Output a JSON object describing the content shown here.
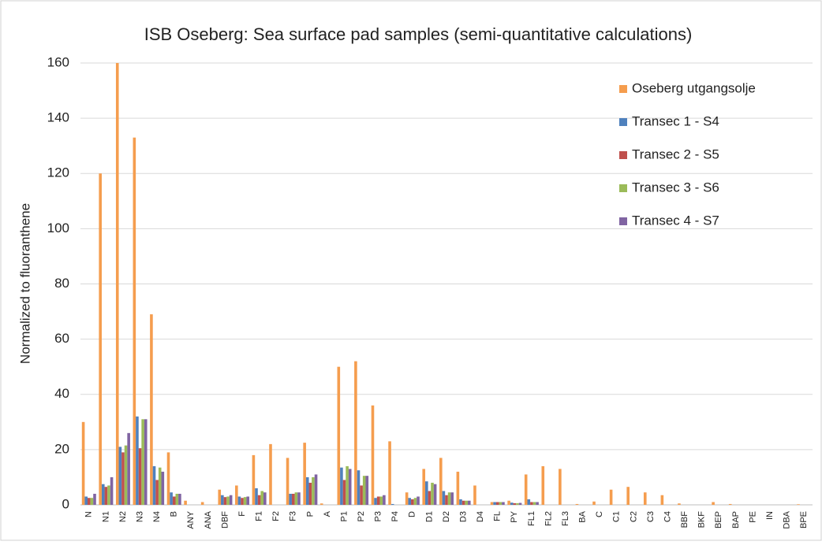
{
  "chart_data": {
    "type": "bar",
    "title": "ISB Oseberg: Sea surface pad samples (semi-quantitative calculations)",
    "y_label": "Normalized to fluoranthene",
    "categories": [
      "N",
      "N1",
      "N2",
      "N3",
      "N4",
      "B",
      "ANY",
      "ANA",
      "DBF",
      "F",
      "F1",
      "F2",
      "F3",
      "P",
      "A",
      "P1",
      "P2",
      "P3",
      "P4",
      "D",
      "D1",
      "D2",
      "D3",
      "D4",
      "FL",
      "PY",
      "FL1",
      "FL2",
      "FL3",
      "BA",
      "C",
      "C1",
      "C2",
      "C3",
      "C4",
      "BBF",
      "BKF",
      "BEP",
      "BAP",
      "PE",
      "IN",
      "DBA",
      "BPE"
    ],
    "series": [
      {
        "name": "Oseberg utgangsolje",
        "color": "#f59d4e",
        "values": [
          30,
          120,
          160,
          133,
          69,
          19,
          1.5,
          1,
          5.5,
          7,
          18,
          22,
          17,
          22.5,
          0.5,
          50,
          52,
          36,
          23,
          4.5,
          13,
          17,
          12,
          7,
          1,
          1.5,
          11,
          14,
          13,
          0.3,
          1.2,
          5.5,
          6.5,
          4.5,
          3.5,
          0.5,
          0,
          1,
          0.3,
          0,
          0,
          0,
          0.2
        ]
      },
      {
        "name": "Transec 1 - S4",
        "color": "#4f81bd",
        "values": [
          3,
          7.5,
          21,
          32,
          14,
          4.5,
          0,
          0,
          3.5,
          3,
          6,
          0,
          4,
          10,
          0,
          13.5,
          12.5,
          2.5,
          0.3,
          2.5,
          8.5,
          5,
          2,
          0,
          1,
          0.8,
          2,
          0,
          0,
          0,
          0,
          0,
          0,
          0,
          0,
          0,
          0,
          0,
          0,
          0,
          0,
          0,
          0
        ]
      },
      {
        "name": "Transec 2 - S5",
        "color": "#c0504d",
        "values": [
          2.5,
          6.5,
          19,
          20.5,
          9,
          3,
          0,
          0,
          2.8,
          2.5,
          3.5,
          0,
          4,
          8,
          0,
          9,
          7,
          3,
          0,
          2,
          5,
          3.5,
          1.5,
          0,
          1,
          0.6,
          1,
          0,
          0,
          0,
          0,
          0,
          0,
          0,
          0,
          0,
          0,
          0,
          0,
          0,
          0,
          0,
          0
        ]
      },
      {
        "name": "Transec 3 - S6",
        "color": "#9bbb59",
        "values": [
          2.5,
          7,
          21.5,
          31,
          13.5,
          4,
          0,
          0,
          3,
          2.8,
          5,
          0,
          4.5,
          10,
          0,
          14,
          10.5,
          3,
          0,
          2.5,
          8,
          4.5,
          1.5,
          0,
          1,
          0.6,
          1,
          0,
          0,
          0,
          0,
          0,
          0,
          0,
          0,
          0,
          0,
          0,
          0,
          0,
          0,
          0,
          0
        ]
      },
      {
        "name": "Transec 4 - S7",
        "color": "#8064a2",
        "values": [
          4,
          10,
          26,
          31,
          12,
          4,
          0,
          0,
          3.5,
          3,
          4.5,
          0,
          4.5,
          11,
          0,
          13,
          10.5,
          3.5,
          0,
          3,
          7.5,
          4.5,
          1.5,
          0,
          1,
          0.7,
          1,
          0,
          0,
          0,
          0,
          0,
          0,
          0,
          0,
          0,
          0,
          0,
          0,
          0,
          0,
          0,
          0
        ]
      }
    ],
    "ylim": [
      0,
      160
    ],
    "yticks": [
      0,
      20,
      40,
      60,
      80,
      100,
      120,
      140,
      160
    ],
    "grid": true,
    "legend": "top-right"
  }
}
